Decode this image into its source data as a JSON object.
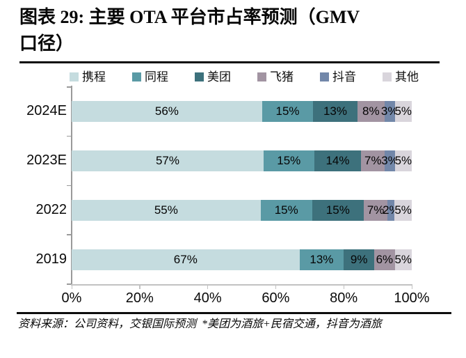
{
  "title": "图表 29: 主要 OTA 平台市占率预测（GMV 口径）",
  "source_note": "资料来源：公司资料，交银国际预测  *美团为酒旅+民宿交通，抖音为酒旅",
  "chart_data": {
    "type": "bar",
    "orientation": "horizontal",
    "stacked": true,
    "unit": "%",
    "title": "主要 OTA 平台市占率预测（GMV 口径）",
    "categories": [
      "2024E",
      "2023E",
      "2022",
      "2019"
    ],
    "series": [
      {
        "name": "携程",
        "color": "#c5dcdf",
        "values": [
          56,
          57,
          55,
          67
        ]
      },
      {
        "name": "同程",
        "color": "#5a9aa5",
        "values": [
          15,
          15,
          15,
          13
        ]
      },
      {
        "name": "美团",
        "color": "#3d717c",
        "values": [
          13,
          14,
          15,
          9
        ]
      },
      {
        "name": "飞猪",
        "color": "#a294a2",
        "values": [
          8,
          7,
          7,
          6
        ]
      },
      {
        "name": "抖音",
        "color": "#7287a9",
        "values": [
          3,
          3,
          2,
          0
        ]
      },
      {
        "name": "其他",
        "color": "#d9d5dc",
        "values": [
          5,
          5,
          5,
          5
        ]
      }
    ],
    "data_label_format": "{value}%",
    "x_ticks": [
      "0%",
      "20%",
      "40%",
      "60%",
      "80%",
      "100%"
    ],
    "xlim": [
      0,
      100
    ],
    "legend_position": "top",
    "grid": false
  }
}
